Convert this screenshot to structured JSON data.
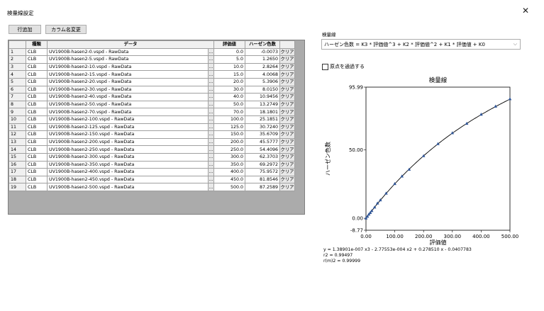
{
  "window": {
    "title": "検量線設定",
    "close_symbol": "✕"
  },
  "toolbar": {
    "add_row_label": "行追加",
    "rename_column_label": "カラム名変更"
  },
  "table": {
    "headers": {
      "type": "種類",
      "data": "データ",
      "eval": "評価値",
      "hazen": "ハーゼン色数"
    },
    "ellipsis_label": "...",
    "clear_label": "クリア",
    "rows": [
      {
        "no": "1",
        "type": "CLB",
        "data": "UV1900B-hasen2-0.vspd - RawData",
        "eval": "0.0",
        "hazen": "-0.0073"
      },
      {
        "no": "2",
        "type": "CLB",
        "data": "UV1900B-hasen2-5.vspd - RawData",
        "eval": "5.0",
        "hazen": "1.2650"
      },
      {
        "no": "3",
        "type": "CLB",
        "data": "UV1900B-hasen2-10.vspd - RawData",
        "eval": "10.0",
        "hazen": "2.8264"
      },
      {
        "no": "4",
        "type": "CLB",
        "data": "UV1900B-hasen2-15.vspd - RawData",
        "eval": "15.0",
        "hazen": "4.0068"
      },
      {
        "no": "5",
        "type": "CLB",
        "data": "UV1900B-hasen2-20.vspd - RawData",
        "eval": "20.0",
        "hazen": "5.3906"
      },
      {
        "no": "6",
        "type": "CLB",
        "data": "UV1900B-hasen2-30.vspd - RawData",
        "eval": "30.0",
        "hazen": "8.0150"
      },
      {
        "no": "7",
        "type": "CLB",
        "data": "UV1900B-hasen2-40.vspd - RawData",
        "eval": "40.0",
        "hazen": "10.9456"
      },
      {
        "no": "8",
        "type": "CLB",
        "data": "UV1900B-hasen2-50.vspd - RawData",
        "eval": "50.0",
        "hazen": "13.2749"
      },
      {
        "no": "9",
        "type": "CLB",
        "data": "UV1900B-hasen2-70.vspd - RawData",
        "eval": "70.0",
        "hazen": "18.1801"
      },
      {
        "no": "10",
        "type": "CLB",
        "data": "UV1900B-hasen2-100.vspd - RawData",
        "eval": "100.0",
        "hazen": "25.1851"
      },
      {
        "no": "11",
        "type": "CLB",
        "data": "UV1900B-hasen2-125.vspd - RawData",
        "eval": "125.0",
        "hazen": "30.7240"
      },
      {
        "no": "12",
        "type": "CLB",
        "data": "UV1900B-hasen2-150.vspd - RawData",
        "eval": "150.0",
        "hazen": "35.6709"
      },
      {
        "no": "13",
        "type": "CLB",
        "data": "UV1900B-hasen2-200.vspd - RawData",
        "eval": "200.0",
        "hazen": "45.5777"
      },
      {
        "no": "14",
        "type": "CLB",
        "data": "UV1900B-hasen2-250.vspd - RawData",
        "eval": "250.0",
        "hazen": "54.4096"
      },
      {
        "no": "15",
        "type": "CLB",
        "data": "UV1900B-hasen2-300.vspd - RawData",
        "eval": "300.0",
        "hazen": "62.3703"
      },
      {
        "no": "16",
        "type": "CLB",
        "data": "UV1900B-hasen2-350.vspd - RawData",
        "eval": "350.0",
        "hazen": "69.2972"
      },
      {
        "no": "17",
        "type": "CLB",
        "data": "UV1900B-hasen2-400.vspd - RawData",
        "eval": "400.0",
        "hazen": "75.9572"
      },
      {
        "no": "18",
        "type": "CLB",
        "data": "UV1900B-hasen2-450.vspd - RawData",
        "eval": "450.0",
        "hazen": "81.8546"
      },
      {
        "no": "19",
        "type": "CLB",
        "data": "UV1900B-hasen2-500.vspd - RawData",
        "eval": "500.0",
        "hazen": "87.2589"
      }
    ]
  },
  "curve": {
    "label": "検量線",
    "formula": "ハーゼン色数 = K3 * 評価値^3 + K2 * 評価値^2 + K1 * 評価値 + K0",
    "origin_checkbox_label": "原点を通過する",
    "origin_checked": false
  },
  "chart_data": {
    "type": "scatter",
    "title": "検量線",
    "xlabel": "評価値",
    "ylabel": "ハーゼン色数",
    "xlim": [
      0.0,
      500.0
    ],
    "ylim": [
      -8.77,
      95.99
    ],
    "xticks": [
      "0.00",
      "100.00",
      "200.00",
      "300.00",
      "400.00",
      "500.00"
    ],
    "yticks": [
      {
        "value": 95.99,
        "label": "95.99"
      },
      {
        "value": 50.0,
        "label": "50.00"
      },
      {
        "value": 0.0,
        "label": "0.00"
      },
      {
        "value": -8.77,
        "label": "-8.77"
      }
    ],
    "x": [
      0,
      5,
      10,
      15,
      20,
      30,
      40,
      50,
      70,
      100,
      125,
      150,
      200,
      250,
      300,
      350,
      400,
      450,
      500
    ],
    "y": [
      -0.0073,
      1.265,
      2.8264,
      4.0068,
      5.3906,
      8.015,
      10.9456,
      13.2749,
      18.1801,
      25.1851,
      30.724,
      35.6709,
      45.5777,
      54.4096,
      62.3703,
      69.2972,
      75.9572,
      81.8546,
      87.2589
    ],
    "fit": {
      "k3": 1.38901e-07,
      "k2": -0.000277553,
      "k1": 0.27851,
      "k0": -0.0407783
    },
    "stats": [
      "y = 1.38901e-007 x3 - 2.77553e-004 x2 + 0.278510 x - 0.0407783",
      "r2 = 0.99497",
      "r(m)2 = 0.99999"
    ],
    "marker_color": "#2f5597",
    "line_color": "#000000"
  }
}
